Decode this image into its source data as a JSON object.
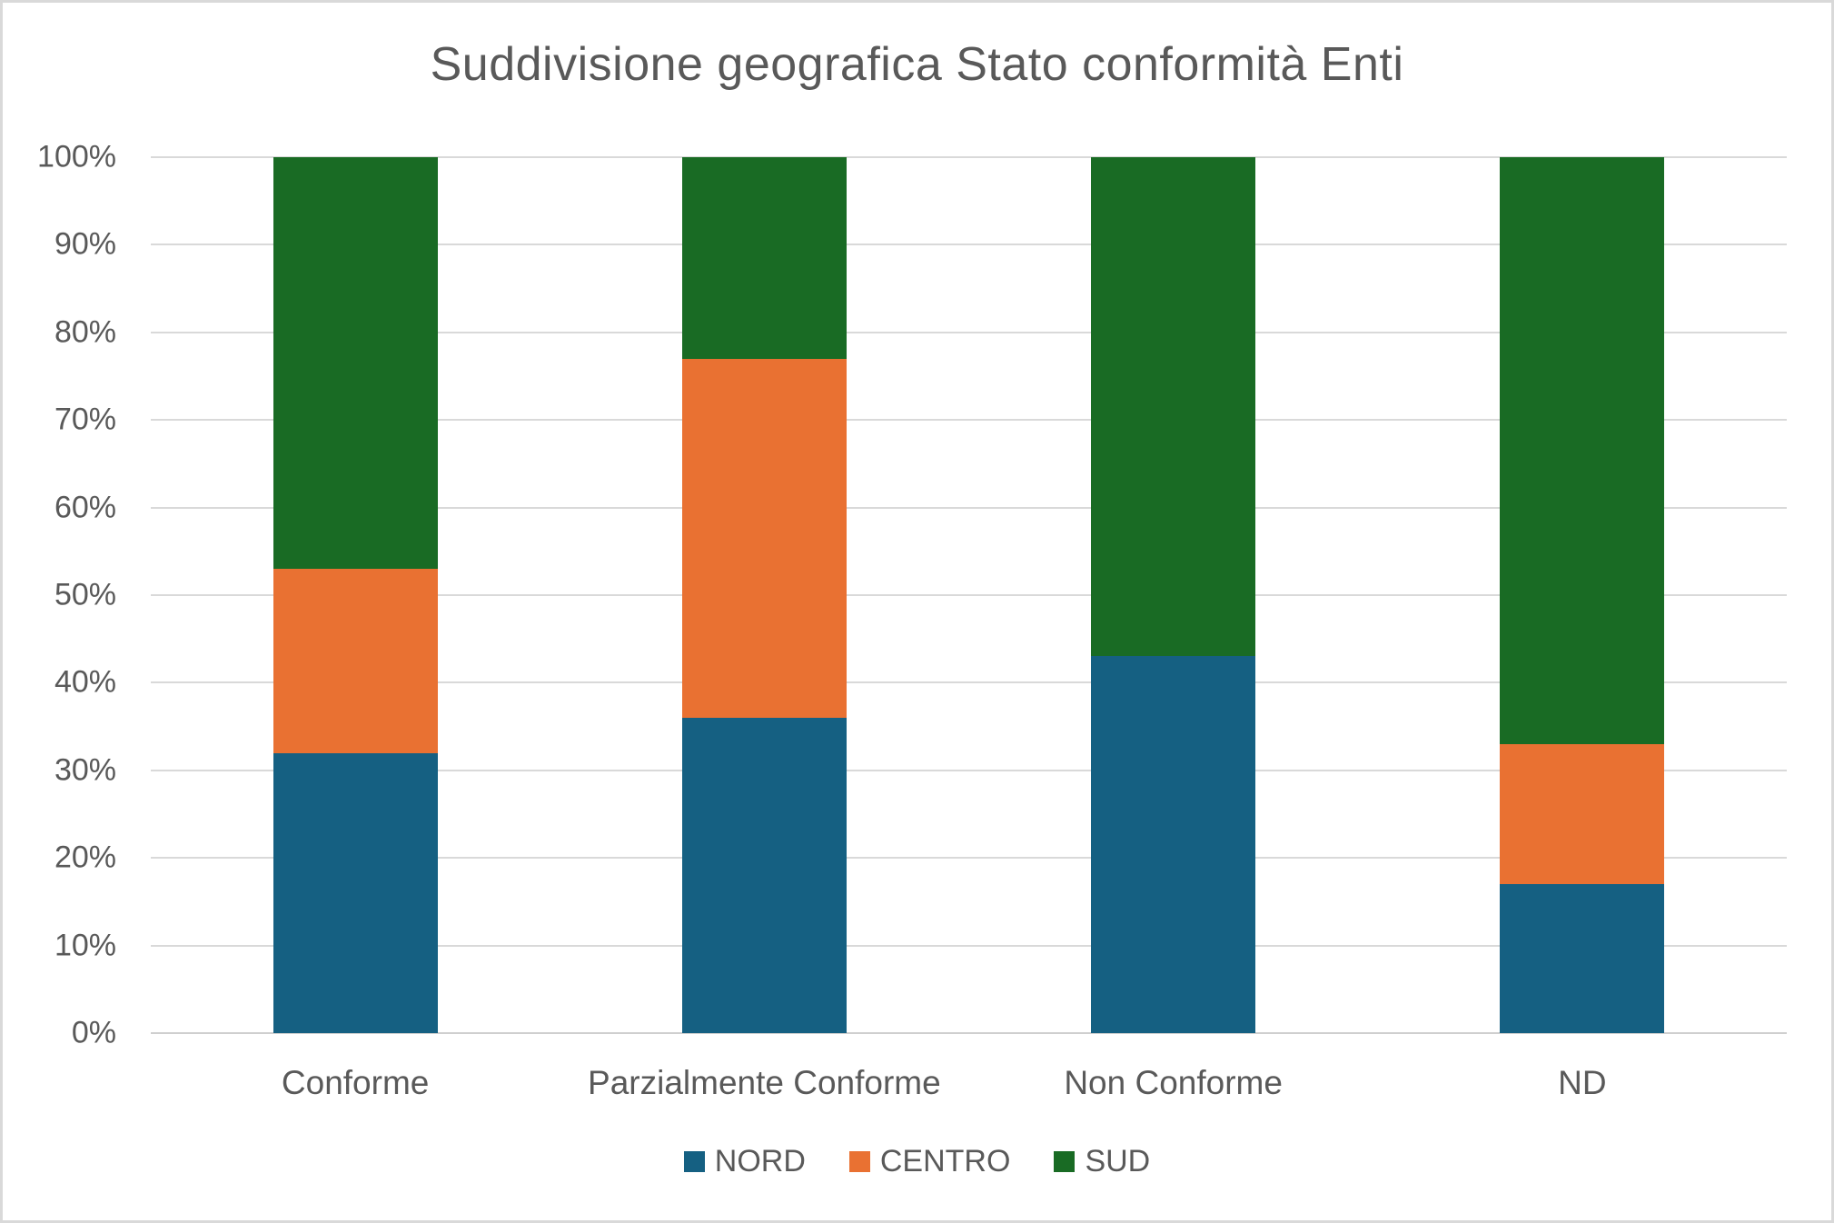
{
  "title": "Suddivisione geografica Stato conformità Enti",
  "colors": {
    "nord": "#156082",
    "centro": "#E97132",
    "sud": "#196B24",
    "text": "#595959",
    "gridline": "#D9D9D9",
    "axis_line": "#CFCFCF",
    "frame_border": "#D9D9D9",
    "background": "#FFFFFF"
  },
  "chart_data": {
    "type": "bar",
    "subtype": "100-percent-stacked-column",
    "title": "Suddivisione geografica Stato conformità Enti",
    "categories": [
      "Conforme",
      "Parzialmente Conforme",
      "Non Conforme",
      "ND"
    ],
    "series": [
      {
        "name": "NORD",
        "color": "#156082",
        "values": [
          32,
          36,
          43,
          17
        ]
      },
      {
        "name": "CENTRO",
        "color": "#E97132",
        "values": [
          21,
          41,
          0,
          16
        ]
      },
      {
        "name": "SUD",
        "color": "#196B24",
        "values": [
          47,
          23,
          57,
          67
        ]
      }
    ],
    "xlabel": "",
    "ylabel": "",
    "ylim": [
      0,
      100
    ],
    "yticks": [
      "0%",
      "10%",
      "20%",
      "30%",
      "40%",
      "50%",
      "60%",
      "70%",
      "80%",
      "90%",
      "100%"
    ],
    "ytick_step": 10,
    "grid": true,
    "legend_position": "bottom",
    "legend": [
      "NORD",
      "CENTRO",
      "SUD"
    ]
  }
}
